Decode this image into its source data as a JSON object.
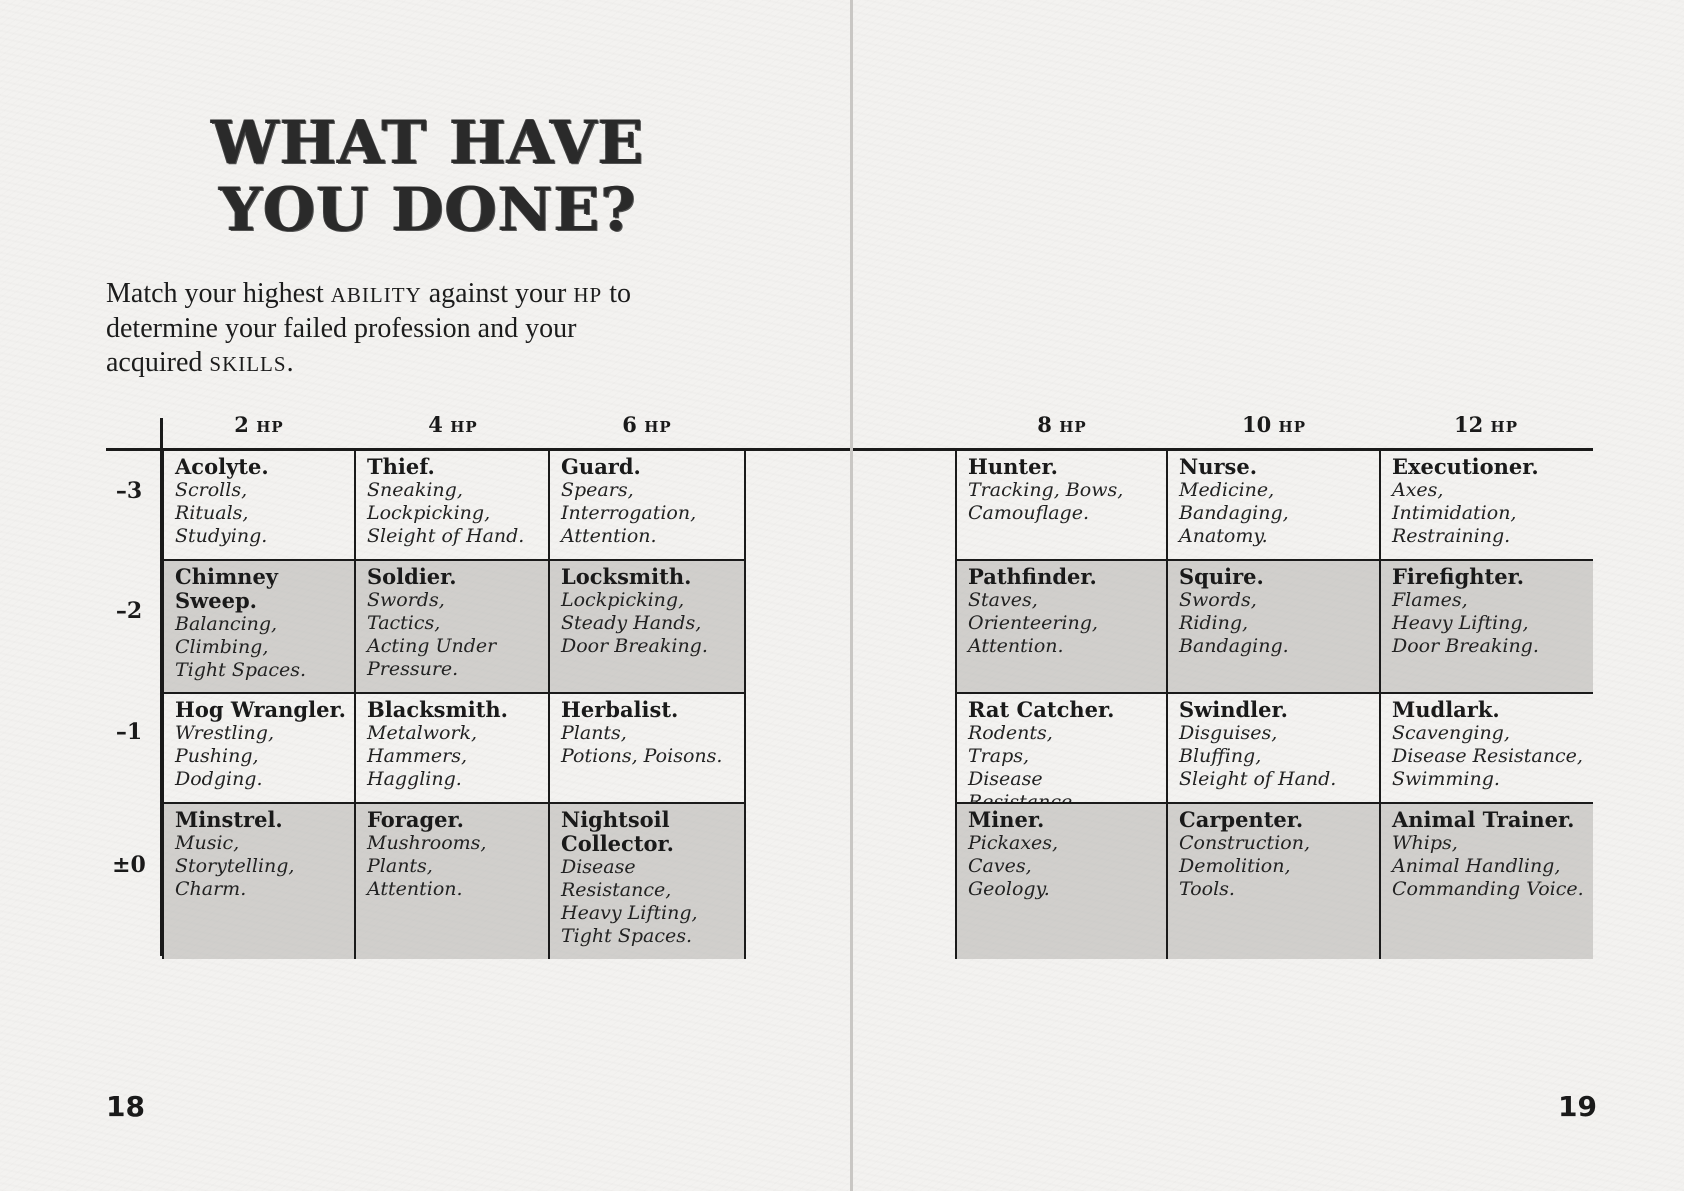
{
  "title": {
    "line1": "WHAT HAVE",
    "line2": "YOU DONE?"
  },
  "intro": {
    "part1": "Match your highest ",
    "ability": "ABILITY",
    "part2": " against your ",
    "hp": "HP",
    "part3": " to determine your failed profession and your acquired ",
    "skills": "SKILLS",
    "part4": "."
  },
  "hp_unit": "HP",
  "columns": [
    "2",
    "4",
    "6",
    "8",
    "10",
    "12"
  ],
  "rows": [
    "–3",
    "–2",
    "–1",
    "±0"
  ],
  "left_grid": [
    [
      {
        "name": "Acolyte.",
        "skills": "Scrolls,\nRituals,\nStudying."
      },
      {
        "name": "Thief.",
        "skills": "Sneaking,\nLockpicking,\nSleight of Hand."
      },
      {
        "name": "Guard.",
        "skills": "Spears,\nInterrogation,\nAttention."
      }
    ],
    [
      {
        "name": "Chimney Sweep.",
        "skills": "Balancing,\nClimbing,\nTight Spaces."
      },
      {
        "name": "Soldier.",
        "skills": "Swords,\nTactics,\nActing Under\nPressure."
      },
      {
        "name": "Locksmith.",
        "skills": "Lockpicking,\nSteady Hands,\nDoor Breaking."
      }
    ],
    [
      {
        "name": "Hog Wrangler.",
        "skills": "Wrestling,\nPushing, Dodging."
      },
      {
        "name": "Blacksmith.",
        "skills": "Metalwork,\nHammers,\nHaggling."
      },
      {
        "name": "Herbalist.",
        "skills": "Plants,\nPotions, Poisons."
      }
    ],
    [
      {
        "name": "Minstrel.",
        "skills": "Music,\nStorytelling,\nCharm."
      },
      {
        "name": "Forager.",
        "skills": "Mushrooms,\nPlants,\nAttention."
      },
      {
        "name": "Nightsoil Collector.",
        "skills": "Disease\nResistance,\nHeavy Lifting,\nTight Spaces."
      }
    ]
  ],
  "right_grid": [
    [
      {
        "name": "Hunter.",
        "skills": "Tracking, Bows,\nCamouflage."
      },
      {
        "name": "Nurse.",
        "skills": "Medicine,\nBandaging,\nAnatomy."
      },
      {
        "name": "Executioner.",
        "skills": "Axes,\nIntimidation,\nRestraining."
      }
    ],
    [
      {
        "name": "Pathfinder.",
        "skills": "Staves,\nOrienteering,\nAttention."
      },
      {
        "name": "Squire.",
        "skills": "Swords,\nRiding,\nBandaging."
      },
      {
        "name": "Firefighter.",
        "skills": "Flames,\nHeavy Lifting,\nDoor Breaking."
      }
    ],
    [
      {
        "name": "Rat Catcher.",
        "skills": "Rodents,\nTraps,\nDisease Resistance."
      },
      {
        "name": "Swindler.",
        "skills": "Disguises,\nBluffing,\nSleight of Hand."
      },
      {
        "name": "Mudlark.",
        "skills": "Scavenging,\nDisease Resistance,\nSwimming."
      }
    ],
    [
      {
        "name": "Miner.",
        "skills": "Pickaxes,\nCaves,\nGeology."
      },
      {
        "name": "Carpenter.",
        "skills": "Construction,\nDemolition,\nTools."
      },
      {
        "name": "Animal Trainer.",
        "skills": "Whips,\nAnimal Handling,\nCommanding Voice."
      }
    ]
  ],
  "page_numbers": {
    "left": "18",
    "right": "19"
  }
}
